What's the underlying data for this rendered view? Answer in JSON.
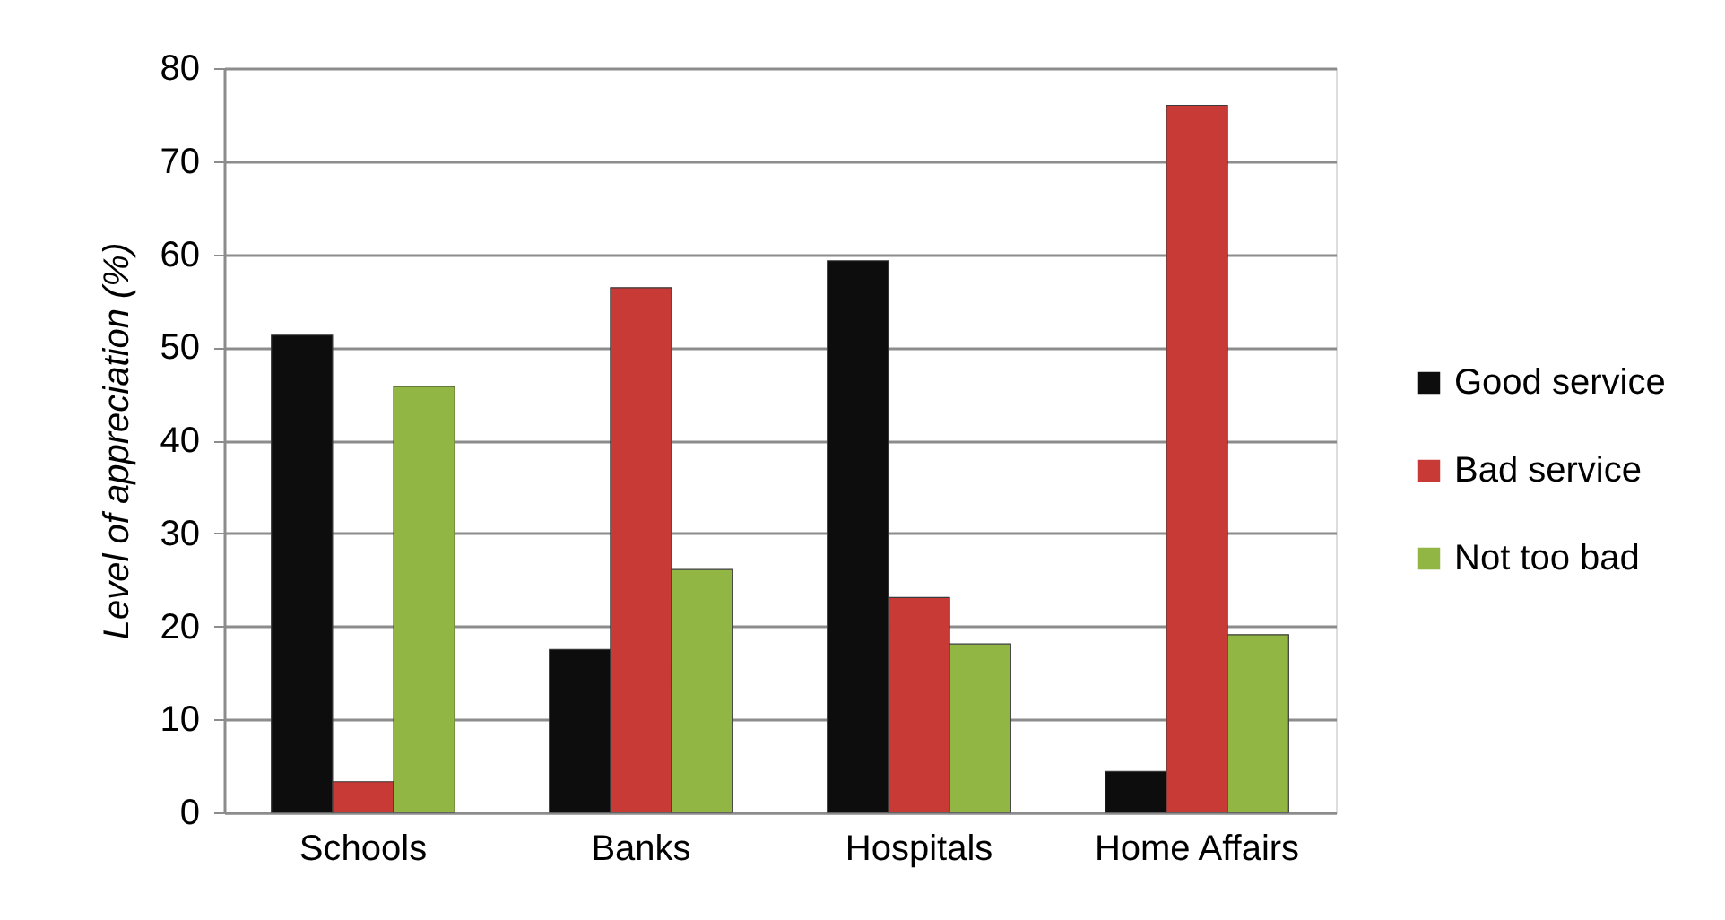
{
  "chart_data": {
    "type": "bar",
    "ylabel": "Level of appreciation (%)",
    "categories": [
      "Schools",
      "Banks",
      "Hospitals",
      "Home Affairs"
    ],
    "series": [
      {
        "name": "Good service",
        "color": "#0d0d0d",
        "values": [
          51.3,
          17.5,
          59.3,
          4.4
        ]
      },
      {
        "name": "Bad service",
        "color": "#c83a36",
        "values": [
          3.3,
          56.4,
          23.1,
          76.0
        ]
      },
      {
        "name": "Not too bad",
        "color": "#92b643",
        "values": [
          45.8,
          26.1,
          18.1,
          19.1
        ]
      }
    ],
    "ylim": [
      0,
      80
    ],
    "yticks": [
      0,
      10,
      20,
      30,
      40,
      50,
      60,
      70,
      80
    ],
    "grid": "y",
    "legend": "right"
  }
}
